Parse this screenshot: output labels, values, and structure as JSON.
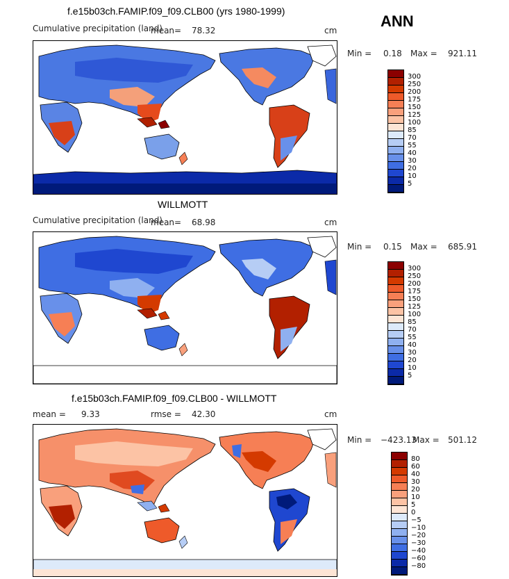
{
  "season": "ANN",
  "panels": [
    {
      "title": "f.e15b03ch.FAMIP.f09_f09.CLB00 (yrs 1980-1999)",
      "left_label": "Cumulative precipitation (land)",
      "mean_label": "mean=",
      "mean_value": "78.32",
      "rmse_label": "",
      "rmse_value": "",
      "units": "cm",
      "min_label": "Min =",
      "min_value": "0.18",
      "max_label": "Max =",
      "max_value": "921.11",
      "levels": [
        "300",
        "250",
        "200",
        "175",
        "150",
        "125",
        "100",
        "85",
        "70",
        "55",
        "40",
        "30",
        "20",
        "10",
        "5"
      ],
      "colors": [
        "#8b0000",
        "#b22000",
        "#d43a00",
        "#ee5a2a",
        "#f67f55",
        "#f9a07c",
        "#fcc3a5",
        "#fde5d5",
        "#ddeafa",
        "#b6cdf5",
        "#8fb0f0",
        "#6890ea",
        "#3f6ee3",
        "#1f47d0",
        "#0b2aa8",
        "#001a7a"
      ]
    },
    {
      "title": "WILLMOTT",
      "left_label": "Cumulative precipitation (land)",
      "mean_label": "mean=",
      "mean_value": "68.98",
      "rmse_label": "",
      "rmse_value": "",
      "units": "cm",
      "min_label": "Min =",
      "min_value": "0.15",
      "max_label": "Max =",
      "max_value": "685.91",
      "levels": [
        "300",
        "250",
        "200",
        "175",
        "150",
        "125",
        "100",
        "85",
        "70",
        "55",
        "40",
        "30",
        "20",
        "10",
        "5"
      ],
      "colors": [
        "#8b0000",
        "#b22000",
        "#d43a00",
        "#ee5a2a",
        "#f67f55",
        "#f9a07c",
        "#fcc3a5",
        "#fde5d5",
        "#ddeafa",
        "#b6cdf5",
        "#8fb0f0",
        "#6890ea",
        "#3f6ee3",
        "#1f47d0",
        "#0b2aa8",
        "#001a7a"
      ]
    },
    {
      "title": "f.e15b03ch.FAMIP.f09_f09.CLB00 - WILLMOTT",
      "left_label": "mean =",
      "mean_label": "",
      "mean_value": "9.33",
      "rmse_label": "rmse =",
      "rmse_value": "42.30",
      "units": "cm",
      "min_label": "Min =",
      "min_value": "−423.13",
      "max_label": "Max =",
      "max_value": "501.12",
      "levels": [
        "80",
        "60",
        "40",
        "30",
        "20",
        "10",
        "5",
        "0",
        "−5",
        "−10",
        "−20",
        "−30",
        "−40",
        "−60",
        "−80"
      ],
      "colors": [
        "#8b0000",
        "#b22000",
        "#d43a00",
        "#ee5a2a",
        "#f67f55",
        "#f9a07c",
        "#fcc3a5",
        "#fde5d5",
        "#ddeafa",
        "#b6cdf5",
        "#8fb0f0",
        "#6890ea",
        "#3f6ee3",
        "#1f47d0",
        "#0b2aa8",
        "#001a7a"
      ]
    }
  ]
}
